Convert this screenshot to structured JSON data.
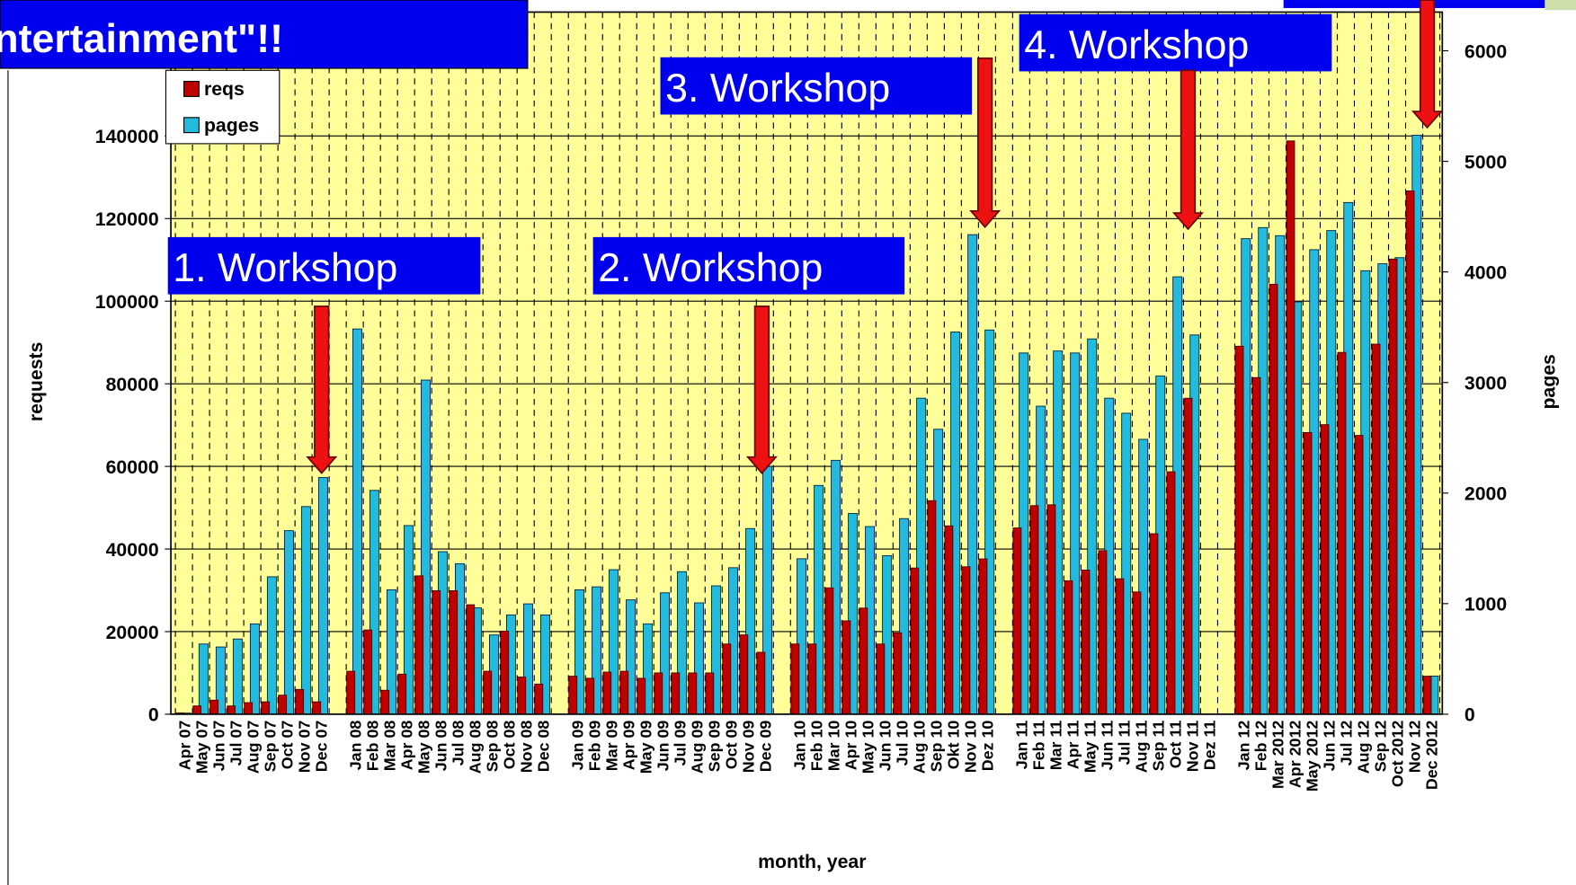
{
  "chart_data": {
    "type": "bar",
    "xlabel": "month, year",
    "ylabel": "requests",
    "y2label": "pages",
    "categories": [
      "Apr 07",
      "May 07",
      "Jun 07",
      "Jul 07",
      "Aug 07",
      "Sep 07",
      "Oct 07",
      "Nov 07",
      "Dec 07",
      null,
      "Jan 08",
      "Feb 08",
      "Mar 08",
      "Apr 08",
      "May 08",
      "Jun 08",
      "Jul 08",
      "Aug 08",
      "Sep 08",
      "Oct 08",
      "Nov 08",
      "Dec 08",
      null,
      "Jan 09",
      "Feb 09",
      "Mar 09",
      "Apr 09",
      "May 09",
      "Jun 09",
      "Jul 09",
      "Aug 09",
      "Sep 09",
      "Oct 09",
      "Nov 09",
      "Dec 09",
      null,
      "Jan 10",
      "Feb 10",
      "Mar 10",
      "Apr 10",
      "May 10",
      "Jun 10",
      "Jul 10",
      "Aug 10",
      "Sep 10",
      "Okt 10",
      "Nov 10",
      "Dez 10",
      null,
      "Jan 11",
      "Feb 11",
      "Mar 11",
      "Apr 11",
      "May 11",
      "Jun 11",
      "Jul 11",
      "Aug 11",
      "Sep 11",
      "Oct 11",
      "Nov 11",
      "Dez 11",
      null,
      "Jan 12",
      "Feb 12",
      "Mar 2012",
      "Apr 2012",
      "May 2012",
      "Jun 12",
      "Jul 12",
      "Aug 12",
      "Sep 12",
      "Oct 2012",
      "Nov 12",
      "Dec 2012"
    ],
    "series": [
      {
        "name": "reqs",
        "color": "#c00000",
        "axis": "y",
        "values": [
          300,
          2000,
          3400,
          2000,
          2800,
          3000,
          4600,
          6000,
          3000,
          null,
          10400,
          20400,
          5800,
          9700,
          33500,
          29900,
          29900,
          26500,
          10400,
          20100,
          9000,
          7300,
          null,
          9200,
          8700,
          10200,
          10400,
          8700,
          10000,
          10000,
          10000,
          10000,
          17000,
          19200,
          15000,
          null,
          17000,
          17000,
          30600,
          22600,
          25700,
          17000,
          19700,
          35400,
          51700,
          45600,
          35700,
          37600,
          null,
          45100,
          50500,
          50700,
          32300,
          34900,
          39600,
          32800,
          29600,
          43700,
          58700,
          76500,
          null,
          null,
          89100,
          81500,
          104100,
          138800,
          68200,
          70100,
          87600,
          67500,
          89600,
          110200,
          126700,
          9200
        ]
      },
      {
        "name": "pages",
        "color": "#22bbdd",
        "axis": "y2",
        "values": [
          10,
          635,
          608,
          680,
          817,
          1243,
          1660,
          1878,
          2141,
          null,
          3484,
          2024,
          1125,
          1706,
          3022,
          1470,
          1361,
          962,
          717,
          898,
          998,
          898,
          null,
          1125,
          1152,
          1307,
          1034,
          817,
          1098,
          1289,
          1007,
          1161,
          1325,
          1679,
          2241,
          null,
          1406,
          2069,
          2296,
          1815,
          1697,
          1434,
          1769,
          2858,
          2577,
          3457,
          4337,
          3475,
          null,
          3267,
          2786,
          3285,
          3267,
          3394,
          2858,
          2722,
          2486,
          3058,
          3956,
          3430,
          null,
          null,
          4301,
          4401,
          4328,
          3729,
          4201,
          4374,
          4628,
          4011,
          4074,
          4129,
          5236,
          345
        ]
      }
    ],
    "ylim": [
      0,
      170000
    ],
    "yticks": [
      0,
      20000,
      40000,
      60000,
      80000,
      100000,
      120000,
      140000
    ],
    "y2lim": [
      0,
      6350
    ],
    "y2ticks": [
      0,
      1000,
      2000,
      3000,
      4000,
      5000,
      6000
    ],
    "grid": true,
    "legend": "upper left",
    "banner": "ntertainment\"!!",
    "annotations": [
      "1. Workshop",
      "2. Workshop",
      "3. Workshop",
      "4. Workshop"
    ]
  }
}
